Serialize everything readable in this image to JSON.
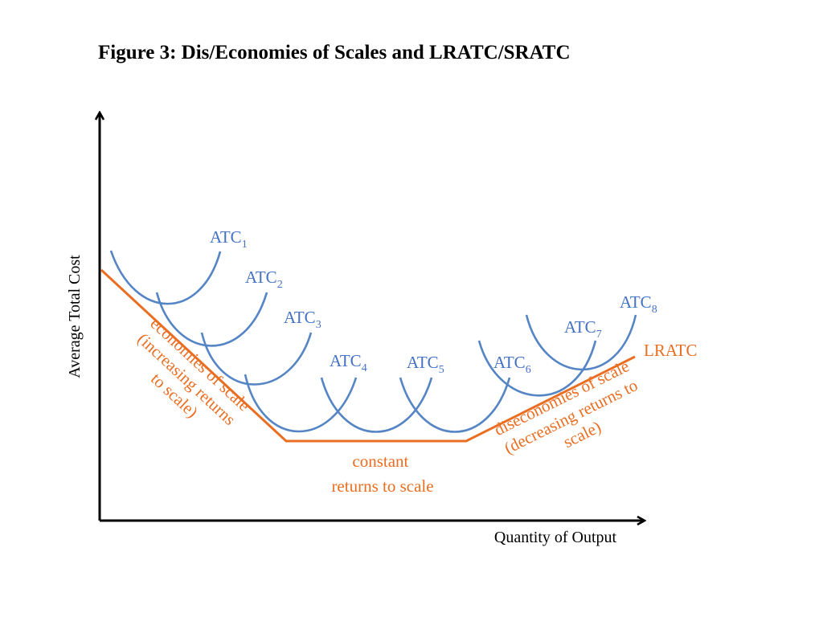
{
  "title": "Figure 3: Dis/Economies of Scales and LRATC/SRATC",
  "axes": {
    "y_label": "Average Total Cost",
    "x_label": "Quantity of Output"
  },
  "curves": [
    {
      "base": "ATC",
      "sub": "1"
    },
    {
      "base": "ATC",
      "sub": "2"
    },
    {
      "base": "ATC",
      "sub": "3"
    },
    {
      "base": "ATC",
      "sub": "4"
    },
    {
      "base": "ATC",
      "sub": "5"
    },
    {
      "base": "ATC",
      "sub": "6"
    },
    {
      "base": "ATC",
      "sub": "7"
    },
    {
      "base": "ATC",
      "sub": "8"
    }
  ],
  "lratc_label": "LRATC",
  "regions": {
    "economies": [
      "economies of scale",
      "(increasing returns",
      "to scale)"
    ],
    "constant": [
      "constant",
      "returns to scale"
    ],
    "diseconomies": [
      "diseconomies of scale",
      "(decreasing returns to",
      "scale)"
    ]
  },
  "colors": {
    "atc": "#5585c4",
    "atc_label": "#4472c4",
    "lratc": "#ea6e22",
    "axis": "#000000"
  }
}
